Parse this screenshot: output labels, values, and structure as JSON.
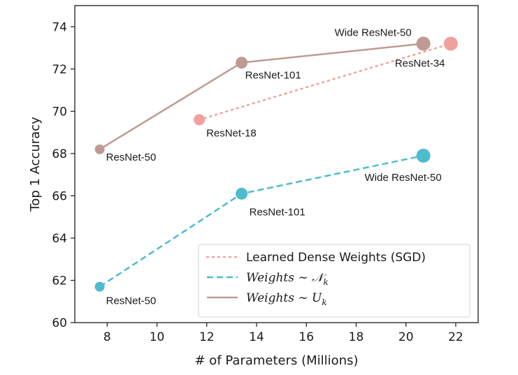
{
  "chart_data": {
    "type": "line",
    "title": "",
    "xlabel": "# of Parameters (Millions)",
    "ylabel": "Top 1 Accuracy",
    "xlim": [
      6.7,
      22.9
    ],
    "ylim": [
      60,
      75
    ],
    "xticks": [
      8,
      10,
      12,
      14,
      16,
      18,
      20,
      22
    ],
    "yticks": [
      60,
      62,
      64,
      66,
      68,
      70,
      72,
      74
    ],
    "grid": false,
    "legend_position": "lower-right",
    "series": [
      {
        "name": "Learned Dense Weights (SGD)",
        "color": "#f0a19b",
        "line_style": "dotted",
        "points": [
          {
            "x": 11.7,
            "y": 69.6,
            "label": "ResNet-18"
          },
          {
            "x": 21.8,
            "y": 73.2,
            "label": "ResNet-34"
          }
        ]
      },
      {
        "name": "Weights ∼ 𝒩",
        "name_subscript": "k",
        "color": "#4dbccc",
        "line_style": "dashed",
        "points": [
          {
            "x": 7.7,
            "y": 61.7,
            "label": "ResNet-50"
          },
          {
            "x": 13.4,
            "y": 66.1,
            "label": "ResNet-101"
          },
          {
            "x": 20.7,
            "y": 67.9,
            "label": "Wide ResNet-50"
          }
        ]
      },
      {
        "name": "Weights ∼ U",
        "name_subscript": "k",
        "color": "#bf9a93",
        "line_style": "solid",
        "points": [
          {
            "x": 7.7,
            "y": 68.2,
            "label": "ResNet-50"
          },
          {
            "x": 13.4,
            "y": 72.3,
            "label": "ResNet-101"
          },
          {
            "x": 20.7,
            "y": 73.2,
            "label": "Wide ResNet-50"
          }
        ]
      }
    ]
  }
}
